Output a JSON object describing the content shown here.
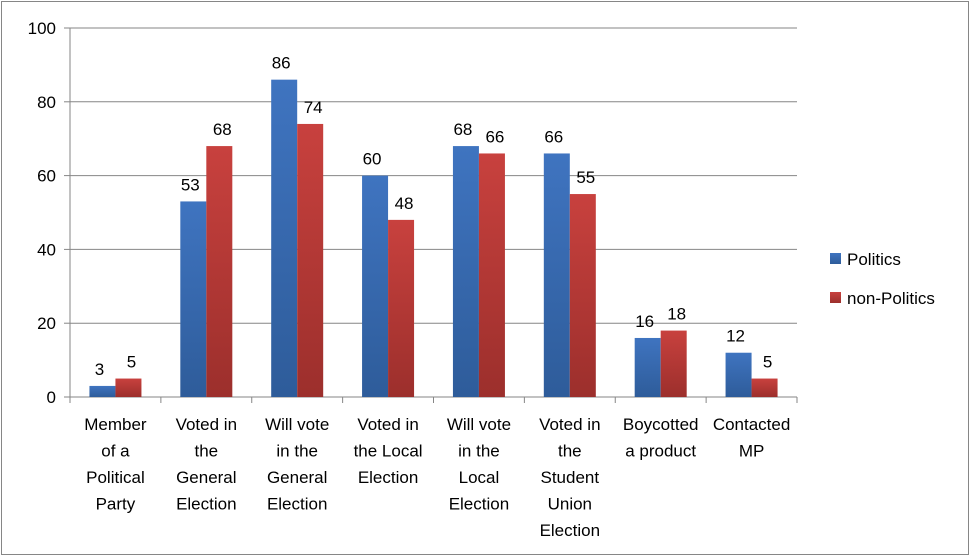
{
  "chart_data": {
    "type": "bar",
    "categories": [
      [
        "Member",
        "of a",
        "Political",
        "Party"
      ],
      [
        "Voted in",
        "the",
        "General",
        "Election"
      ],
      [
        "Will vote",
        "in the",
        "General",
        "Election"
      ],
      [
        "Voted in",
        "the Local",
        "Election"
      ],
      [
        "Will vote",
        "in the",
        "Local",
        "Election"
      ],
      [
        "Voted in",
        "the",
        "Student",
        "Union",
        "Election"
      ],
      [
        "Boycotted",
        "a product"
      ],
      [
        "Contacted",
        "MP"
      ]
    ],
    "series": [
      {
        "name": "Politics",
        "values": [
          3,
          53,
          86,
          60,
          68,
          66,
          16,
          12
        ],
        "color": "#4a7ebb"
      },
      {
        "name": "non-Politics",
        "values": [
          5,
          68,
          74,
          48,
          66,
          55,
          18,
          5
        ],
        "color": "#be4b48"
      }
    ],
    "ylim": [
      0,
      100
    ],
    "yticks": [
      "0",
      "20",
      "40",
      "60",
      "80",
      "100"
    ],
    "grid": true,
    "legend_position": "right"
  }
}
